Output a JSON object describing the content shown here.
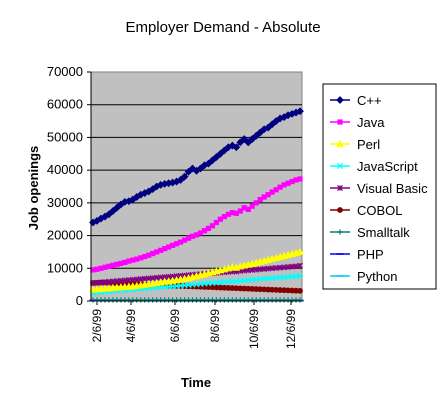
{
  "chart_data": {
    "type": "line",
    "title": "Employer Demand - Absolute",
    "xlabel": "Time",
    "ylabel": "Job openings",
    "ylim": [
      0,
      70000
    ],
    "yticks": [
      "0",
      "10000",
      "20000",
      "30000",
      "40000",
      "50000",
      "60000",
      "70000"
    ],
    "xticks": [
      "2/6/99",
      "4/6/99",
      "6/6/99",
      "8/6/99",
      "10/6/99",
      "12/6/99"
    ],
    "plot_background": "#C0C0C0",
    "grid": "horizontal",
    "legend_position": "right",
    "series": [
      {
        "name": "C++",
        "color": "#000080",
        "marker": "diamond",
        "values": [
          24000,
          24500,
          25200,
          25800,
          26500,
          27500,
          28500,
          29500,
          30300,
          30500,
          31000,
          31800,
          32500,
          33000,
          33500,
          34200,
          35000,
          35500,
          35800,
          36000,
          36200,
          36500,
          37000,
          38000,
          39500,
          40500,
          39800,
          40500,
          41500,
          42000,
          43000,
          44000,
          45000,
          46000,
          47000,
          47500,
          47000,
          48500,
          49500,
          48500,
          49500,
          50500,
          51500,
          52500,
          53000,
          54000,
          55000,
          55800,
          56200,
          56800,
          57200,
          57600,
          58000
        ]
      },
      {
        "name": "Java",
        "color": "#FF00FF",
        "marker": "square",
        "values": [
          9500,
          9700,
          10000,
          10300,
          10600,
          10900,
          11200,
          11500,
          11800,
          12200,
          12500,
          12800,
          13200,
          13600,
          14000,
          14500,
          15000,
          15500,
          16000,
          16500,
          17000,
          17500,
          18000,
          18600,
          19200,
          19800,
          20200,
          20800,
          21500,
          22200,
          23000,
          24000,
          25000,
          25800,
          26500,
          27000,
          26800,
          27500,
          28500,
          28000,
          29000,
          30000,
          31000,
          31800,
          32500,
          33300,
          34000,
          34800,
          35500,
          36000,
          36500,
          37000,
          37300
        ]
      },
      {
        "name": "Perl",
        "color": "#FFFF00",
        "marker": "triangle",
        "values": [
          3500,
          3600,
          3700,
          3800,
          3900,
          4000,
          4100,
          4200,
          4300,
          4400,
          4500,
          4600,
          4800,
          5000,
          5200,
          5300,
          5500,
          5700,
          5900,
          6000,
          6200,
          6400,
          6600,
          6800,
          7000,
          7300,
          7600,
          7900,
          8200,
          8500,
          8800,
          9100,
          9400,
          9700,
          10000,
          10300,
          10200,
          10600,
          10900,
          11100,
          11400,
          11700,
          12000,
          12300,
          12600,
          12900,
          13200,
          13500,
          13800,
          14100,
          14400,
          14700,
          15000
        ]
      },
      {
        "name": "JavaScript",
        "color": "#00FFFF",
        "marker": "x",
        "values": [
          2500,
          2600,
          2700,
          2800,
          2900,
          3000,
          3100,
          3200,
          3300,
          3400,
          3500,
          3600,
          3700,
          3800,
          3900,
          4000,
          4100,
          4200,
          4300,
          4400,
          4500,
          4600,
          4700,
          4800,
          4900,
          5000,
          5100,
          5200,
          5300,
          5400,
          5500,
          5600,
          5700,
          5800,
          5900,
          6000,
          6000,
          6200,
          6300,
          6400,
          6500,
          6600,
          6700,
          6800,
          6900,
          7000,
          7100,
          7200,
          7300,
          7400,
          7500,
          7600,
          7700
        ]
      },
      {
        "name": "Visual Basic",
        "color": "#800080",
        "marker": "star",
        "values": [
          5500,
          5600,
          5700,
          5800,
          5900,
          6000,
          6100,
          6200,
          6300,
          6400,
          6500,
          6600,
          6700,
          6800,
          6900,
          7000,
          7100,
          7200,
          7300,
          7400,
          7500,
          7600,
          7700,
          7800,
          7900,
          8000,
          8100,
          8200,
          8300,
          8400,
          8500,
          8600,
          8700,
          8800,
          8900,
          9000,
          9000,
          9200,
          9300,
          9400,
          9500,
          9600,
          9700,
          9800,
          9900,
          10000,
          10100,
          10200,
          10300,
          10400,
          10500,
          10600,
          10800
        ]
      },
      {
        "name": "COBOL",
        "color": "#800000",
        "marker": "circle",
        "values": [
          5500,
          5550,
          5600,
          5550,
          5500,
          5450,
          5400,
          5350,
          5300,
          5250,
          5200,
          5150,
          5100,
          5050,
          5000,
          4950,
          4900,
          4850,
          4800,
          4750,
          4700,
          4650,
          4600,
          4550,
          4500,
          4450,
          4400,
          4350,
          4300,
          4250,
          4200,
          4150,
          4100,
          4050,
          4000,
          3950,
          3900,
          3850,
          3800,
          3750,
          3700,
          3650,
          3600,
          3550,
          3500,
          3450,
          3400,
          3350,
          3300,
          3250,
          3200,
          3150,
          3100
        ]
      },
      {
        "name": "Smalltalk",
        "color": "#008080",
        "marker": "plus",
        "values": [
          300,
          300,
          300,
          300,
          300,
          300,
          300,
          300,
          300,
          300,
          300,
          300,
          300,
          300,
          300,
          300,
          300,
          300,
          300,
          300,
          300,
          300,
          300,
          300,
          300,
          300,
          300,
          300,
          300,
          300,
          300,
          300,
          300,
          300,
          300,
          300,
          300,
          300,
          300,
          300,
          300,
          300,
          300,
          300,
          300,
          300,
          300,
          300,
          300,
          300,
          300,
          300,
          300
        ]
      },
      {
        "name": "PHP",
        "color": "#0000FF",
        "marker": "dash",
        "values": [
          100,
          100,
          100,
          100,
          100,
          100,
          100,
          100,
          100,
          100,
          100,
          100,
          100,
          100,
          100,
          100,
          100,
          100,
          100,
          100,
          100,
          100,
          100,
          100,
          100,
          100,
          100,
          100,
          100,
          100,
          100,
          100,
          100,
          100,
          100,
          100,
          100,
          100,
          100,
          100,
          100,
          100,
          100,
          100,
          100,
          100,
          100,
          100,
          100,
          100,
          100,
          100,
          100
        ]
      },
      {
        "name": "Python",
        "color": "#00CCFF",
        "marker": "dash",
        "values": [
          200,
          200,
          200,
          200,
          200,
          200,
          200,
          200,
          200,
          200,
          200,
          200,
          200,
          200,
          200,
          200,
          200,
          200,
          200,
          200,
          200,
          200,
          200,
          200,
          200,
          200,
          200,
          200,
          200,
          200,
          200,
          200,
          200,
          200,
          200,
          200,
          200,
          200,
          200,
          200,
          200,
          200,
          200,
          200,
          200,
          200,
          200,
          200,
          200,
          200,
          200,
          200,
          200
        ]
      }
    ]
  }
}
